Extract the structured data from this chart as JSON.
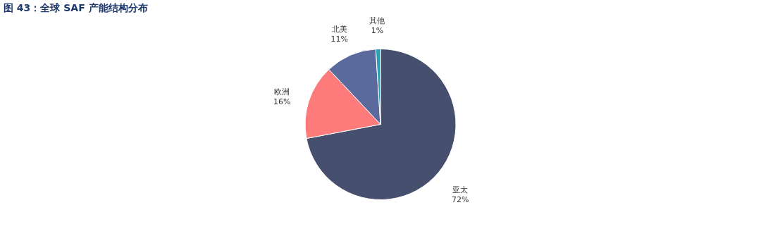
{
  "chart_data": {
    "type": "pie",
    "title": "图 43：全球 SAF 产能结构分布",
    "categories": [
      "亚太",
      "欧洲",
      "北美",
      "其他"
    ],
    "values": [
      72,
      16,
      11,
      1
    ],
    "colors": [
      "#464f6d",
      "#fd7b7b",
      "#5a6a9d",
      "#2e9fb1"
    ],
    "value_labels": [
      "72%",
      "16%",
      "11%",
      "1%"
    ],
    "legend": false
  }
}
